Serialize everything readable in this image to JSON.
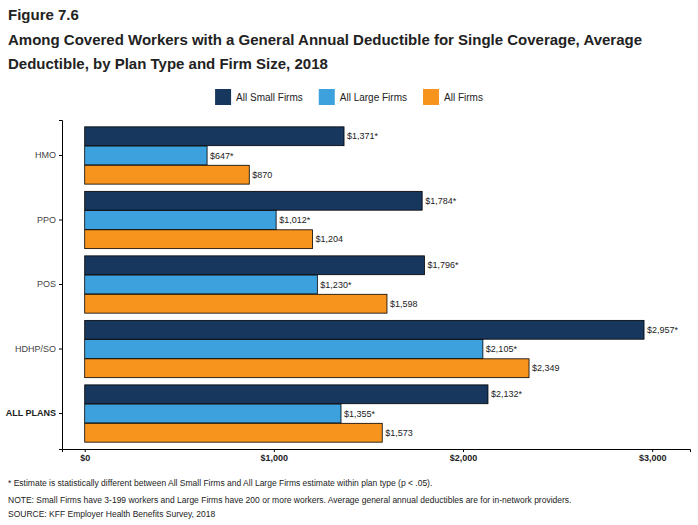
{
  "chart_data": {
    "type": "bar",
    "orientation": "horizontal",
    "title": "Figure 7.6",
    "subtitle": "Among Covered Workers with a General Annual Deductible for Single Coverage, Average Deductible, by Plan Type and Firm Size, 2018",
    "categories": [
      "HMO",
      "PPO",
      "POS",
      "HDHP/SO",
      "ALL PLANS"
    ],
    "series": [
      {
        "name": "All Small Firms",
        "color": "#17375e",
        "values": [
          1371,
          1784,
          1796,
          2957,
          2132
        ],
        "value_labels": [
          "$1,371*",
          "$1,784*",
          "$1,796*",
          "$2,957*",
          "$2,132*"
        ]
      },
      {
        "name": "All Large Firms",
        "color": "#3ca1dd",
        "values": [
          647,
          1012,
          1230,
          2105,
          1355
        ],
        "value_labels": [
          "$647*",
          "$1,012*",
          "$1,230*",
          "$2,105*",
          "$1,355*"
        ]
      },
      {
        "name": "All Firms",
        "color": "#f7941d",
        "values": [
          870,
          1204,
          1598,
          2349,
          1573
        ],
        "value_labels": [
          "$870",
          "$1,204",
          "$1,598",
          "$2,349",
          "$1,573"
        ]
      }
    ],
    "xlim": [
      -120,
      3200
    ],
    "xticks": [
      {
        "value": 0,
        "label": "$0"
      },
      {
        "value": 1000,
        "label": "$1,000"
      },
      {
        "value": 2000,
        "label": "$2,000"
      },
      {
        "value": 3000,
        "label": "$3,000"
      }
    ],
    "data_labels": true,
    "legend": "top",
    "grid": false,
    "annotations": [
      "* Estimate is statistically different between All Small Firms and All Large Firms estimate within plan type (p < .05).",
      "NOTE: Small Firms have 3-199 workers and Large Firms have 200 or more workers. Average general annual deductibles are for in-network providers.",
      "SOURCE: KFF Employer Health Benefits Survey, 2018"
    ]
  }
}
